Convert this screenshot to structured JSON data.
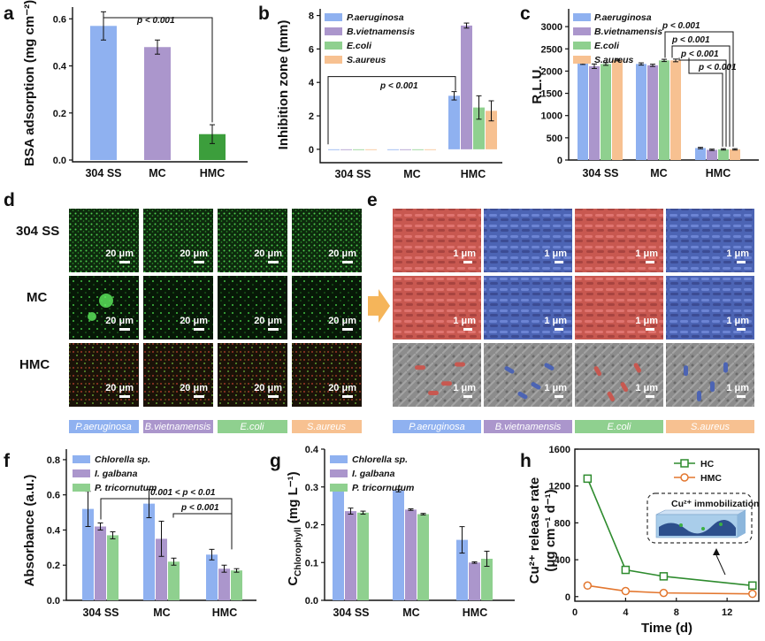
{
  "panel_labels": [
    "a",
    "b",
    "c",
    "d",
    "e",
    "f",
    "g",
    "h"
  ],
  "colors": {
    "blue": "#8FB1F0",
    "purple": "#AB96CC",
    "green": "#8FD08F",
    "orange": "#F7C191",
    "dark_green": "#3C9E3C",
    "hc_line": "#2E8B2E",
    "hmc_line": "#E3772F"
  },
  "panel_a": {
    "ylabel": "BSA adsorption (mg cm⁻²)",
    "yticks": [
      "0.0",
      "0.2",
      "0.4",
      "0.6"
    ],
    "categories": [
      "304 SS",
      "MC",
      "HMC"
    ],
    "pvalue": "p < 0.001"
  },
  "panel_b": {
    "ylabel": "Inhibition zone (mm)",
    "yticks": [
      "0",
      "2",
      "4",
      "6",
      "8"
    ],
    "categories": [
      "304 SS",
      "MC",
      "HMC"
    ],
    "legend": [
      "P.aeruginosa",
      "B.vietnamensis",
      "E.coli",
      "S.aureus"
    ],
    "pvalue": "p < 0.001"
  },
  "panel_c": {
    "ylabel": "R.L.U.",
    "yticks": [
      "0",
      "500",
      "1000",
      "1500",
      "2000",
      "2500",
      "3000"
    ],
    "categories": [
      "304 SS",
      "MC",
      "HMC"
    ],
    "legend": [
      "P.aeruginosa",
      "B.vietnamensis",
      "E.coli",
      "S.aureus"
    ],
    "pvalues": [
      "p < 0.001",
      "p < 0.001",
      "p < 0.001",
      "p < 0.001"
    ]
  },
  "panel_d": {
    "rows": [
      "304 SS",
      "MC",
      "HMC"
    ],
    "scalebar": "20 μm",
    "strip": [
      "P.aeruginosa",
      "B.vietnamensis",
      "E.coli",
      "S.aureus"
    ]
  },
  "panel_e": {
    "scalebar": "1 μm",
    "strip": [
      "P.aeruginosa",
      "B.vietnamensis",
      "E.coli",
      "S.aureus"
    ]
  },
  "panel_f": {
    "ylabel": "Absorbance (a.u.)",
    "yticks": [
      "0.0",
      "0.2",
      "0.4",
      "0.6",
      "0.8"
    ],
    "categories": [
      "304 SS",
      "MC",
      "HMC"
    ],
    "legend": [
      "Chlorella sp.",
      "I. galbana",
      "P. tricornutum"
    ],
    "pvalues": [
      "0.001 < p < 0.01",
      "p < 0.001"
    ]
  },
  "panel_g": {
    "ylabel_main": "C",
    "ylabel_sub": "Chlorophyll",
    "ylabel_unit": " (mg L⁻¹)",
    "yticks": [
      "0.0",
      "0.1",
      "0.2",
      "0.3",
      "0.4"
    ],
    "categories": [
      "304 SS",
      "MC",
      "HMC"
    ],
    "legend": [
      "Chlorella sp.",
      "I. galbana",
      "P. tricornutum"
    ]
  },
  "panel_h": {
    "ylabel_line1": "Cu²⁺ release rate",
    "ylabel_line2": "(μg cm⁻¹ d⁻¹)",
    "xlabel": "Time (d)",
    "yticks": [
      "0",
      "400",
      "800",
      "1200",
      "1600"
    ],
    "xticks": [
      "0",
      "4",
      "8",
      "12"
    ],
    "legend": [
      "HC",
      "HMC"
    ],
    "inset_title": "Cu²⁺ immobilization"
  },
  "chart_data": [
    {
      "id": "a",
      "type": "bar",
      "title": "",
      "ylabel": "BSA adsorption (mg cm-2)",
      "categories": [
        "304 SS",
        "MC",
        "HMC"
      ],
      "values": [
        0.57,
        0.48,
        0.11
      ],
      "errors": [
        0.06,
        0.03,
        0.04
      ],
      "ylim": [
        0,
        0.65
      ]
    },
    {
      "id": "b",
      "type": "bar",
      "ylabel": "Inhibition zone (mm)",
      "categories": [
        "304 SS",
        "MC",
        "HMC"
      ],
      "ylim": [
        -0.8,
        8.4
      ],
      "series": [
        {
          "name": "P.aeruginosa",
          "values": [
            0,
            0,
            3.2
          ],
          "errors": [
            0,
            0,
            0.25
          ]
        },
        {
          "name": "B.vietnamensis",
          "values": [
            0,
            0,
            7.4
          ],
          "errors": [
            0,
            0,
            0.15
          ]
        },
        {
          "name": "E.coli",
          "values": [
            0,
            0,
            2.5
          ],
          "errors": [
            0,
            0,
            0.7
          ]
        },
        {
          "name": "S.aureus",
          "values": [
            0,
            0,
            2.3
          ],
          "errors": [
            0,
            0,
            0.6
          ]
        }
      ]
    },
    {
      "id": "c",
      "type": "bar",
      "ylabel": "R.L.U.",
      "categories": [
        "304 SS",
        "MC",
        "HMC"
      ],
      "ylim": [
        0,
        3400
      ],
      "series": [
        {
          "name": "P.aeruginosa",
          "values": [
            2180,
            2160,
            270
          ],
          "errors": [
            30,
            25,
            15
          ]
        },
        {
          "name": "B.vietnamensis",
          "values": [
            2110,
            2130,
            230
          ],
          "errors": [
            50,
            25,
            15
          ]
        },
        {
          "name": "E.coli",
          "values": [
            2160,
            2240,
            240
          ],
          "errors": [
            30,
            25,
            15
          ]
        },
        {
          "name": "S.aureus",
          "values": [
            2250,
            2240,
            240
          ],
          "errors": [
            20,
            30,
            15
          ]
        }
      ]
    },
    {
      "id": "f",
      "type": "bar",
      "ylabel": "Absorbance (a.u.)",
      "categories": [
        "304 SS",
        "MC",
        "HMC"
      ],
      "ylim": [
        0,
        0.86
      ],
      "series": [
        {
          "name": "Chlorella sp.",
          "values": [
            0.52,
            0.55,
            0.26
          ],
          "errors": [
            0.1,
            0.08,
            0.03
          ]
        },
        {
          "name": "I. galbana",
          "values": [
            0.42,
            0.35,
            0.18
          ],
          "errors": [
            0.02,
            0.1,
            0.02
          ]
        },
        {
          "name": "P. tricornutum",
          "values": [
            0.37,
            0.22,
            0.17
          ],
          "errors": [
            0.02,
            0.02,
            0.01
          ]
        }
      ]
    },
    {
      "id": "g",
      "type": "bar",
      "ylabel": "C_Chlorophyll (mg L-1)",
      "categories": [
        "304 SS",
        "MC",
        "HMC"
      ],
      "ylim": [
        0,
        0.4
      ],
      "series": [
        {
          "name": "Chlorella sp.",
          "values": [
            0.294,
            0.29,
            0.16
          ],
          "errors": [
            0.003,
            0.003,
            0.035
          ]
        },
        {
          "name": "I. galbana",
          "values": [
            0.236,
            0.24,
            0.1
          ],
          "errors": [
            0.008,
            0.002,
            0.002
          ]
        },
        {
          "name": "P. tricornutum",
          "values": [
            0.232,
            0.228,
            0.11
          ],
          "errors": [
            0.004,
            0.002,
            0.02
          ]
        }
      ]
    },
    {
      "id": "h",
      "type": "line",
      "xlabel": "Time (d)",
      "ylabel": "Cu2+ release rate (ug cm-1 d-1)",
      "xlim": [
        0,
        14.5
      ],
      "ylim": [
        -50,
        1600
      ],
      "series": [
        {
          "name": "HC",
          "x": [
            1,
            4,
            7,
            14
          ],
          "y": [
            1280,
            290,
            220,
            120
          ],
          "marker": "square"
        },
        {
          "name": "HMC",
          "x": [
            1,
            4,
            7,
            14
          ],
          "y": [
            120,
            60,
            40,
            30
          ],
          "marker": "circle"
        }
      ]
    }
  ]
}
